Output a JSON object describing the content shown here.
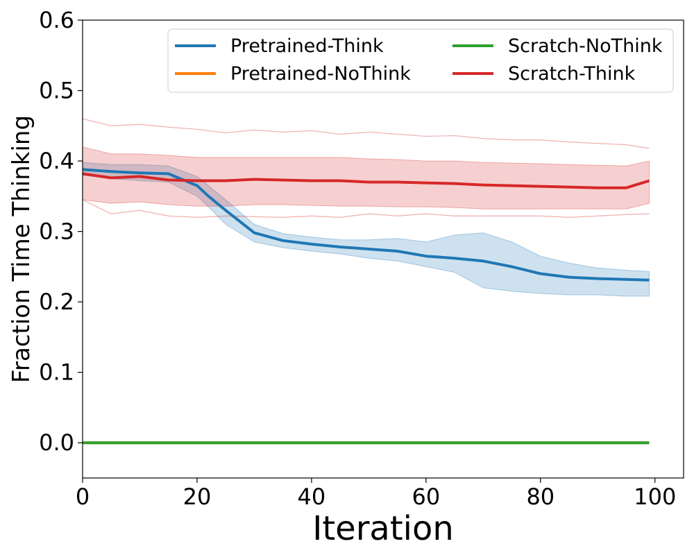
{
  "chart_data": {
    "type": "line",
    "title": "",
    "xlabel": "Iteration",
    "ylabel": "Fraction Time Thinking",
    "xlim": [
      0,
      105
    ],
    "ylim": [
      -0.05,
      0.6
    ],
    "xticks": [
      0,
      20,
      40,
      60,
      80,
      100
    ],
    "yticks": [
      0.0,
      0.1,
      0.2,
      0.3,
      0.4,
      0.5,
      0.6
    ],
    "xtick_labels": [
      "0",
      "20",
      "40",
      "60",
      "80",
      "100"
    ],
    "ytick_labels": [
      "0.0",
      "0.1",
      "0.2",
      "0.3",
      "0.4",
      "0.5",
      "0.6"
    ],
    "grid": false,
    "legend_position": "top-right",
    "legend": [
      "Pretrained-Think",
      "Scratch-NoThink",
      "Pretrained-NoThink",
      "Scratch-Think"
    ],
    "series": [
      {
        "name": "Pretrained-Think",
        "color": "#1f77b4",
        "x": [
          0,
          5,
          10,
          15,
          20,
          22,
          25,
          30,
          35,
          40,
          45,
          50,
          55,
          60,
          65,
          70,
          75,
          80,
          85,
          90,
          95,
          99
        ],
        "mean": [
          0.388,
          0.385,
          0.383,
          0.382,
          0.365,
          0.35,
          0.33,
          0.298,
          0.287,
          0.282,
          0.278,
          0.275,
          0.272,
          0.265,
          0.262,
          0.258,
          0.25,
          0.24,
          0.235,
          0.233,
          0.232,
          0.231
        ],
        "band_low": [
          0.38,
          0.375,
          0.372,
          0.37,
          0.35,
          0.335,
          0.31,
          0.285,
          0.277,
          0.272,
          0.268,
          0.262,
          0.258,
          0.25,
          0.242,
          0.22,
          0.215,
          0.212,
          0.21,
          0.21,
          0.208,
          0.208
        ],
        "band_high": [
          0.398,
          0.395,
          0.395,
          0.393,
          0.378,
          0.365,
          0.345,
          0.31,
          0.297,
          0.292,
          0.288,
          0.288,
          0.29,
          0.285,
          0.295,
          0.298,
          0.285,
          0.265,
          0.255,
          0.248,
          0.245,
          0.243
        ]
      },
      {
        "name": "Pretrained-NoThink",
        "color": "#ff7f0e",
        "x": [
          0,
          99
        ],
        "mean": [
          0.0,
          0.0
        ]
      },
      {
        "name": "Scratch-NoThink",
        "color": "#2ca02c",
        "x": [
          0,
          99
        ],
        "mean": [
          0.0,
          0.0
        ]
      },
      {
        "name": "Scratch-Think",
        "color": "#d62728",
        "x": [
          0,
          5,
          10,
          15,
          20,
          25,
          30,
          35,
          40,
          45,
          50,
          55,
          60,
          65,
          70,
          75,
          80,
          85,
          90,
          95,
          99
        ],
        "mean": [
          0.382,
          0.376,
          0.378,
          0.373,
          0.372,
          0.372,
          0.374,
          0.373,
          0.372,
          0.372,
          0.37,
          0.37,
          0.369,
          0.368,
          0.366,
          0.365,
          0.364,
          0.363,
          0.362,
          0.362,
          0.372
        ],
        "band_low": [
          0.345,
          0.34,
          0.342,
          0.338,
          0.336,
          0.336,
          0.338,
          0.338,
          0.337,
          0.336,
          0.336,
          0.335,
          0.335,
          0.334,
          0.332,
          0.332,
          0.332,
          0.332,
          0.332,
          0.332,
          0.34
        ],
        "band_high": [
          0.42,
          0.41,
          0.41,
          0.408,
          0.405,
          0.405,
          0.405,
          0.405,
          0.405,
          0.405,
          0.403,
          0.402,
          0.4,
          0.4,
          0.398,
          0.397,
          0.396,
          0.395,
          0.394,
          0.393,
          0.4
        ],
        "runs": [
          [
            0.46,
            0.45,
            0.452,
            0.448,
            0.445,
            0.44,
            0.444,
            0.441,
            0.443,
            0.438,
            0.441,
            0.438,
            0.435,
            0.436,
            0.432,
            0.43,
            0.43,
            0.427,
            0.425,
            0.423,
            0.418
          ],
          [
            0.345,
            0.325,
            0.33,
            0.322,
            0.32,
            0.322,
            0.321,
            0.32,
            0.322,
            0.32,
            0.325,
            0.322,
            0.325,
            0.322,
            0.322,
            0.322,
            0.322,
            0.32,
            0.322,
            0.324,
            0.325
          ]
        ]
      }
    ]
  }
}
